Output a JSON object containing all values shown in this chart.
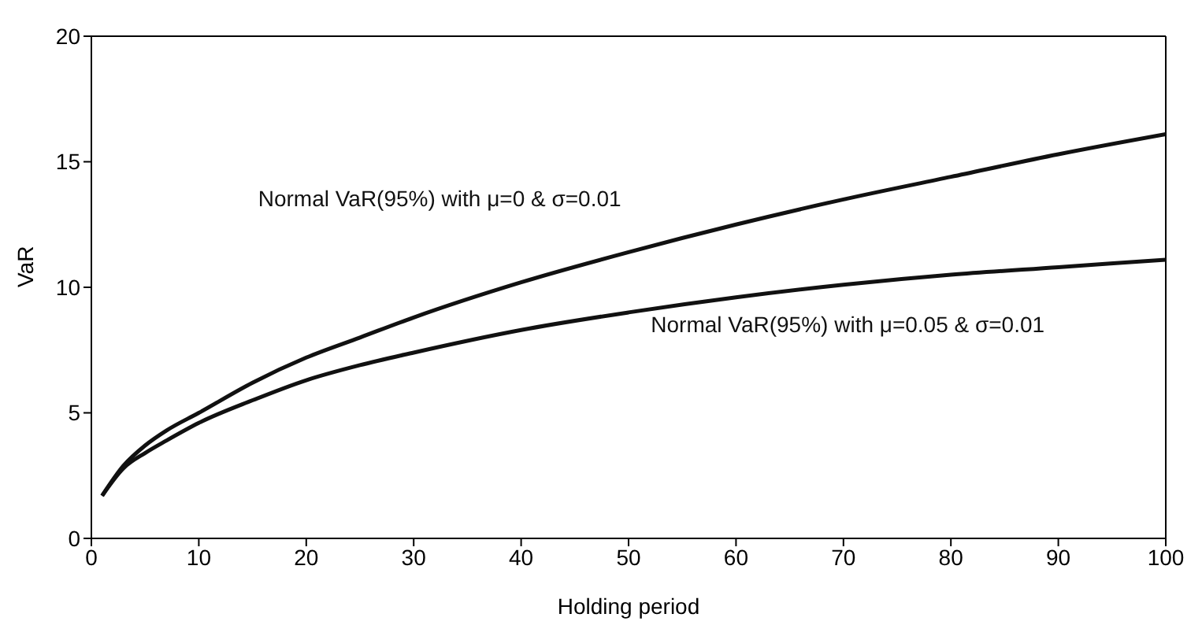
{
  "chart_data": {
    "type": "line",
    "xlabel": "Holding period",
    "ylabel": "VaR",
    "x": [
      1,
      3,
      5,
      7,
      10,
      15,
      20,
      25,
      30,
      40,
      50,
      60,
      70,
      80,
      90,
      100
    ],
    "series": [
      {
        "name": "Normal VaR(95%) with μ=0 & σ=0.01",
        "color": "#111111",
        "values": [
          1.7,
          2.9,
          3.7,
          4.3,
          5.0,
          6.2,
          7.2,
          8.0,
          8.8,
          10.2,
          11.4,
          12.5,
          13.5,
          14.4,
          15.3,
          16.1
        ]
      },
      {
        "name": "Normal VaR(95%) with μ=0.05 & σ=0.01",
        "color": "#111111",
        "values": [
          1.7,
          2.8,
          3.4,
          3.9,
          4.6,
          5.5,
          6.3,
          6.9,
          7.4,
          8.3,
          9.0,
          9.6,
          10.1,
          10.5,
          10.8,
          11.1
        ]
      }
    ],
    "xlim": [
      0,
      100
    ],
    "ylim": [
      0,
      20
    ],
    "xticks": [
      0,
      10,
      20,
      30,
      40,
      50,
      60,
      70,
      80,
      90,
      100
    ],
    "yticks": [
      0,
      5,
      10,
      15,
      20
    ],
    "grid": false,
    "legend": false,
    "marker": "none",
    "line_style": "solid"
  }
}
